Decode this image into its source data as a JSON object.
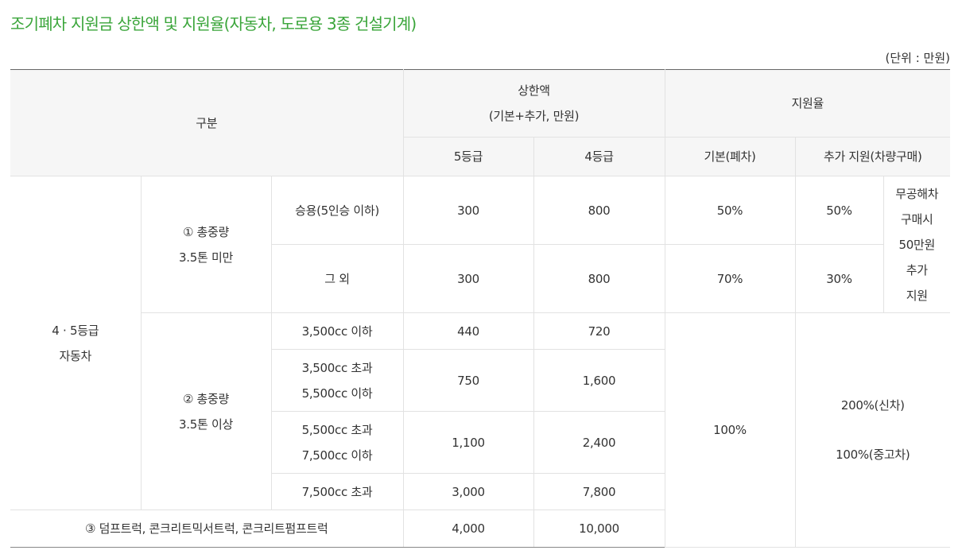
{
  "title": "조기폐차 지원금 상한액 및 지원율(자동차, 도로용 3종 건설기계)",
  "unit": "(단위 : 만원)",
  "header": {
    "category": "구분",
    "cap": "상한액",
    "cap_note": "(기본+추가, 만원)",
    "rate": "지원율",
    "grade5": "5등급",
    "grade4": "4등급",
    "basic": "기본(폐차)",
    "extra": "추가 지원(차량구매)"
  },
  "body": {
    "group": {
      "line1": "4 · 5등급",
      "line2": "자동차"
    },
    "sub1": {
      "line1": "① 총중량",
      "line2": "3.5톤 미만",
      "rows": [
        {
          "label": "승용(5인승 이하)",
          "g5": "300",
          "g4": "800",
          "basic": "50%",
          "extra": "50%"
        },
        {
          "label": "그 외",
          "g5": "300",
          "g4": "800",
          "basic": "70%",
          "extra": "30%"
        }
      ],
      "note": [
        "무공해차",
        "구매시",
        "50만원",
        "추가",
        "지원"
      ]
    },
    "sub2": {
      "line1": "② 총중량",
      "line2": "3.5톤 이상",
      "rows": [
        {
          "label1": "3,500cc 이하",
          "label2": "",
          "g5": "440",
          "g4": "720"
        },
        {
          "label1": "3,500cc 초과",
          "label2": "5,500cc 이하",
          "g5": "750",
          "g4": "1,600"
        },
        {
          "label1": "5,500cc 초과",
          "label2": "7,500cc 이하",
          "g5": "1,100",
          "g4": "2,400"
        },
        {
          "label1": "7,500cc 초과",
          "label2": "",
          "g5": "3,000",
          "g4": "7,800"
        }
      ],
      "basic": "100%",
      "extra1": "200%(신차)",
      "extra2": "100%(중고차)"
    },
    "sub3": {
      "label": "③ 덤프트럭, 콘크리트믹서트럭, 콘크리트펌프트럭",
      "g5": "4,000",
      "g4": "10,000"
    }
  }
}
